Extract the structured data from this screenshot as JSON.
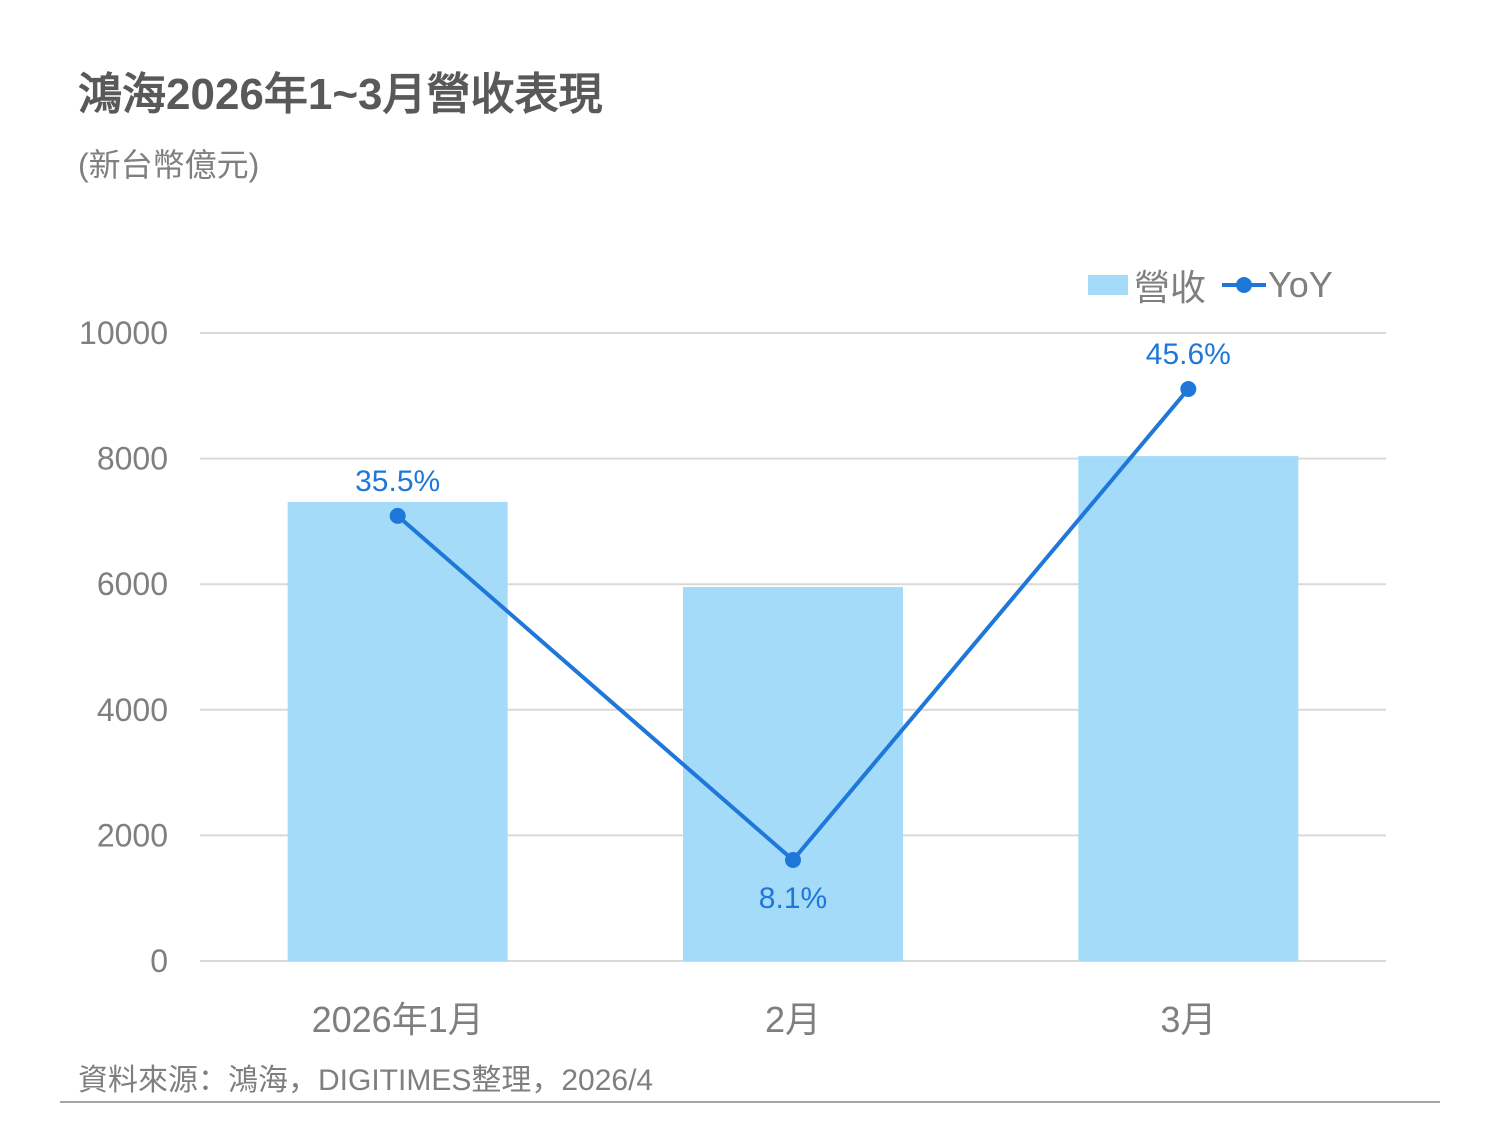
{
  "header": {
    "title": "鴻海2026年1~3月營收表現",
    "subtitle": "(新台幣億元)"
  },
  "legend": {
    "bar_label": "營收",
    "line_label": "YoY"
  },
  "footer": {
    "source": "資料來源：鴻海，DIGITIMES整理，2026/4"
  },
  "colors": {
    "bar": "#a3dbf9",
    "line": "#1f78d9",
    "grid": "#d9d9d9",
    "text": "#7f7f7f",
    "title": "#595959"
  },
  "chart_data": {
    "type": "bar+line",
    "title": "鴻海2026年1~3月營收表現",
    "subtitle": "(新台幣億元)",
    "categories": [
      "2026年1月",
      "2月",
      "3月"
    ],
    "series": [
      {
        "name": "營收",
        "type": "bar",
        "axis": "left",
        "values": [
          7310,
          5955,
          8040
        ]
      },
      {
        "name": "YoY",
        "type": "line",
        "axis": "secondary-hidden",
        "values": [
          35.5,
          8.1,
          45.6
        ],
        "labels": [
          "35.5%",
          "8.1%",
          "45.6%"
        ]
      }
    ],
    "xlabel": "",
    "ylabel": "",
    "ylim": [
      0,
      10000
    ],
    "yticks": [
      0,
      2000,
      4000,
      6000,
      8000,
      10000
    ],
    "grid": true,
    "legend_position": "top-right",
    "source": "資料來源：鴻海，DIGITIMES整理，2026/4"
  }
}
